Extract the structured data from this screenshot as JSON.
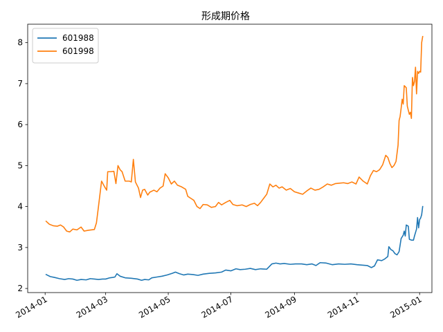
{
  "chart_data": {
    "type": "line",
    "title": "形成期价格",
    "xlabel": "",
    "ylabel": "",
    "xlim": [
      "2013-12-15",
      "2015-01-13"
    ],
    "ylim": [
      1.9,
      8.45
    ],
    "grid": false,
    "legend_position": "top-left",
    "x_ticks": [
      {
        "date": "2014-01-01",
        "label": "2014-01"
      },
      {
        "date": "2014-03-01",
        "label": "2014-03"
      },
      {
        "date": "2014-05-01",
        "label": "2014-05"
      },
      {
        "date": "2014-07-01",
        "label": "2014-07"
      },
      {
        "date": "2014-09-01",
        "label": "2014-09"
      },
      {
        "date": "2014-11-01",
        "label": "2014-11"
      },
      {
        "date": "2015-01-01",
        "label": "2015-01"
      }
    ],
    "y_ticks": [
      {
        "value": 2,
        "label": "2"
      },
      {
        "value": 3,
        "label": "3"
      },
      {
        "value": 4,
        "label": "4"
      },
      {
        "value": 5,
        "label": "5"
      },
      {
        "value": 6,
        "label": "6"
      },
      {
        "value": 7,
        "label": "7"
      },
      {
        "value": 8,
        "label": "8"
      }
    ],
    "series": [
      {
        "name": "601988",
        "color": "#1f77b4",
        "points": [
          [
            "2014-01-02",
            2.34
          ],
          [
            "2014-01-06",
            2.29
          ],
          [
            "2014-01-10",
            2.27
          ],
          [
            "2014-01-15",
            2.24
          ],
          [
            "2014-01-20",
            2.22
          ],
          [
            "2014-01-24",
            2.24
          ],
          [
            "2014-01-28",
            2.23
          ],
          [
            "2014-02-01",
            2.2
          ],
          [
            "2014-02-05",
            2.22
          ],
          [
            "2014-02-10",
            2.21
          ],
          [
            "2014-02-14",
            2.24
          ],
          [
            "2014-02-18",
            2.23
          ],
          [
            "2014-02-22",
            2.22
          ],
          [
            "2014-02-26",
            2.23
          ],
          [
            "2014-03-01",
            2.23
          ],
          [
            "2014-03-05",
            2.26
          ],
          [
            "2014-03-08",
            2.27
          ],
          [
            "2014-03-10",
            2.28
          ],
          [
            "2014-03-12",
            2.36
          ],
          [
            "2014-03-15",
            2.3
          ],
          [
            "2014-03-20",
            2.26
          ],
          [
            "2014-03-26",
            2.25
          ],
          [
            "2014-04-01",
            2.23
          ],
          [
            "2014-04-05",
            2.2
          ],
          [
            "2014-04-08",
            2.22
          ],
          [
            "2014-04-12",
            2.21
          ],
          [
            "2014-04-15",
            2.26
          ],
          [
            "2014-04-20",
            2.28
          ],
          [
            "2014-04-25",
            2.3
          ],
          [
            "2014-04-30",
            2.33
          ],
          [
            "2014-05-05",
            2.37
          ],
          [
            "2014-05-08",
            2.4
          ],
          [
            "2014-05-12",
            2.36
          ],
          [
            "2014-05-16",
            2.33
          ],
          [
            "2014-05-20",
            2.35
          ],
          [
            "2014-05-25",
            2.34
          ],
          [
            "2014-05-30",
            2.32
          ],
          [
            "2014-06-04",
            2.35
          ],
          [
            "2014-06-10",
            2.37
          ],
          [
            "2014-06-16",
            2.38
          ],
          [
            "2014-06-22",
            2.4
          ],
          [
            "2014-06-26",
            2.45
          ],
          [
            "2014-07-01",
            2.43
          ],
          [
            "2014-07-06",
            2.48
          ],
          [
            "2014-07-10",
            2.46
          ],
          [
            "2014-07-15",
            2.47
          ],
          [
            "2014-07-20",
            2.49
          ],
          [
            "2014-07-25",
            2.46
          ],
          [
            "2014-07-30",
            2.48
          ],
          [
            "2014-08-05",
            2.47
          ],
          [
            "2014-08-10",
            2.6
          ],
          [
            "2014-08-14",
            2.62
          ],
          [
            "2014-08-18",
            2.6
          ],
          [
            "2014-08-22",
            2.61
          ],
          [
            "2014-08-28",
            2.59
          ],
          [
            "2014-09-02",
            2.6
          ],
          [
            "2014-09-08",
            2.6
          ],
          [
            "2014-09-13",
            2.58
          ],
          [
            "2014-09-18",
            2.6
          ],
          [
            "2014-09-22",
            2.56
          ],
          [
            "2014-09-26",
            2.63
          ],
          [
            "2014-10-02",
            2.62
          ],
          [
            "2014-10-08",
            2.58
          ],
          [
            "2014-10-14",
            2.6
          ],
          [
            "2014-10-20",
            2.59
          ],
          [
            "2014-10-26",
            2.6
          ],
          [
            "2014-11-01",
            2.58
          ],
          [
            "2014-11-06",
            2.57
          ],
          [
            "2014-11-11",
            2.56
          ],
          [
            "2014-11-15",
            2.51
          ],
          [
            "2014-11-18",
            2.55
          ],
          [
            "2014-11-21",
            2.7
          ],
          [
            "2014-11-25",
            2.68
          ],
          [
            "2014-11-28",
            2.72
          ],
          [
            "2014-12-01",
            2.78
          ],
          [
            "2014-12-02",
            3.02
          ],
          [
            "2014-12-04",
            2.95
          ],
          [
            "2014-12-06",
            2.92
          ],
          [
            "2014-12-08",
            2.85
          ],
          [
            "2014-12-10",
            2.82
          ],
          [
            "2014-12-12",
            2.9
          ],
          [
            "2014-12-14",
            3.22
          ],
          [
            "2014-12-16",
            3.3
          ],
          [
            "2014-12-17",
            3.4
          ],
          [
            "2014-12-18",
            3.28
          ],
          [
            "2014-12-19",
            3.55
          ],
          [
            "2014-12-21",
            3.52
          ],
          [
            "2014-12-22",
            3.2
          ],
          [
            "2014-12-24",
            3.18
          ],
          [
            "2014-12-26",
            3.18
          ],
          [
            "2014-12-27",
            3.28
          ],
          [
            "2014-12-29",
            3.45
          ],
          [
            "2014-12-30",
            3.73
          ],
          [
            "2014-12-31",
            3.48
          ],
          [
            "2015-01-01",
            3.68
          ],
          [
            "2015-01-02",
            3.72
          ],
          [
            "2015-01-03",
            3.8
          ],
          [
            "2015-01-04",
            4.0
          ]
        ]
      },
      {
        "name": "601998",
        "color": "#ff7f0e",
        "points": [
          [
            "2014-01-02",
            3.64
          ],
          [
            "2014-01-05",
            3.57
          ],
          [
            "2014-01-09",
            3.53
          ],
          [
            "2014-01-13",
            3.52
          ],
          [
            "2014-01-16",
            3.55
          ],
          [
            "2014-01-19",
            3.5
          ],
          [
            "2014-01-22",
            3.4
          ],
          [
            "2014-01-25",
            3.38
          ],
          [
            "2014-01-28",
            3.45
          ],
          [
            "2014-02-01",
            3.43
          ],
          [
            "2014-02-05",
            3.5
          ],
          [
            "2014-02-08",
            3.4
          ],
          [
            "2014-02-12",
            3.42
          ],
          [
            "2014-02-18",
            3.44
          ],
          [
            "2014-02-20",
            3.6
          ],
          [
            "2014-02-22",
            4.0
          ],
          [
            "2014-02-25",
            4.62
          ],
          [
            "2014-02-28",
            4.48
          ],
          [
            "2014-03-02",
            4.4
          ],
          [
            "2014-03-03",
            4.85
          ],
          [
            "2014-03-06",
            4.85
          ],
          [
            "2014-03-09",
            4.86
          ],
          [
            "2014-03-11",
            4.56
          ],
          [
            "2014-03-13",
            5.0
          ],
          [
            "2014-03-15",
            4.9
          ],
          [
            "2014-03-17",
            4.85
          ],
          [
            "2014-03-20",
            4.62
          ],
          [
            "2014-03-24",
            4.62
          ],
          [
            "2014-03-26",
            4.6
          ],
          [
            "2014-03-28",
            5.15
          ],
          [
            "2014-03-30",
            4.6
          ],
          [
            "2014-04-02",
            4.45
          ],
          [
            "2014-04-04",
            4.22
          ],
          [
            "2014-04-06",
            4.4
          ],
          [
            "2014-04-08",
            4.42
          ],
          [
            "2014-04-11",
            4.28
          ],
          [
            "2014-04-13",
            4.35
          ],
          [
            "2014-04-17",
            4.4
          ],
          [
            "2014-04-20",
            4.36
          ],
          [
            "2014-04-23",
            4.45
          ],
          [
            "2014-04-26",
            4.5
          ],
          [
            "2014-04-28",
            4.8
          ],
          [
            "2014-05-01",
            4.7
          ],
          [
            "2014-05-04",
            4.55
          ],
          [
            "2014-05-07",
            4.62
          ],
          [
            "2014-05-10",
            4.52
          ],
          [
            "2014-05-14",
            4.48
          ],
          [
            "2014-05-18",
            4.42
          ],
          [
            "2014-05-20",
            4.25
          ],
          [
            "2014-05-23",
            4.2
          ],
          [
            "2014-05-26",
            4.15
          ],
          [
            "2014-05-29",
            4.0
          ],
          [
            "2014-06-01",
            3.95
          ],
          [
            "2014-06-04",
            4.05
          ],
          [
            "2014-06-08",
            4.04
          ],
          [
            "2014-06-12",
            3.98
          ],
          [
            "2014-06-16",
            4.0
          ],
          [
            "2014-06-19",
            4.1
          ],
          [
            "2014-06-22",
            4.04
          ],
          [
            "2014-06-26",
            4.1
          ],
          [
            "2014-06-30",
            4.15
          ],
          [
            "2014-07-03",
            4.05
          ],
          [
            "2014-07-07",
            4.02
          ],
          [
            "2014-07-12",
            4.04
          ],
          [
            "2014-07-16",
            4.0
          ],
          [
            "2014-07-20",
            4.05
          ],
          [
            "2014-07-24",
            4.08
          ],
          [
            "2014-07-27",
            4.02
          ],
          [
            "2014-07-30",
            4.1
          ],
          [
            "2014-08-02",
            4.2
          ],
          [
            "2014-08-05",
            4.3
          ],
          [
            "2014-08-08",
            4.55
          ],
          [
            "2014-08-11",
            4.48
          ],
          [
            "2014-08-14",
            4.52
          ],
          [
            "2014-08-17",
            4.45
          ],
          [
            "2014-08-20",
            4.48
          ],
          [
            "2014-08-24",
            4.4
          ],
          [
            "2014-08-28",
            4.44
          ],
          [
            "2014-09-01",
            4.36
          ],
          [
            "2014-09-05",
            4.33
          ],
          [
            "2014-09-09",
            4.3
          ],
          [
            "2014-09-13",
            4.38
          ],
          [
            "2014-09-17",
            4.45
          ],
          [
            "2014-09-21",
            4.4
          ],
          [
            "2014-09-25",
            4.42
          ],
          [
            "2014-09-29",
            4.48
          ],
          [
            "2014-10-03",
            4.55
          ],
          [
            "2014-10-07",
            4.52
          ],
          [
            "2014-10-11",
            4.56
          ],
          [
            "2014-10-15",
            4.57
          ],
          [
            "2014-10-19",
            4.58
          ],
          [
            "2014-10-23",
            4.56
          ],
          [
            "2014-10-27",
            4.6
          ],
          [
            "2014-10-31",
            4.55
          ],
          [
            "2014-11-03",
            4.72
          ],
          [
            "2014-11-07",
            4.62
          ],
          [
            "2014-11-11",
            4.55
          ],
          [
            "2014-11-14",
            4.75
          ],
          [
            "2014-11-17",
            4.88
          ],
          [
            "2014-11-20",
            4.85
          ],
          [
            "2014-11-23",
            4.9
          ],
          [
            "2014-11-26",
            5.02
          ],
          [
            "2014-11-29",
            5.25
          ],
          [
            "2014-12-01",
            5.2
          ],
          [
            "2014-12-03",
            5.05
          ],
          [
            "2014-12-05",
            4.95
          ],
          [
            "2014-12-07",
            5.0
          ],
          [
            "2014-12-09",
            5.1
          ],
          [
            "2014-12-10",
            5.3
          ],
          [
            "2014-12-11",
            5.5
          ],
          [
            "2014-12-12",
            6.1
          ],
          [
            "2014-12-13",
            6.2
          ],
          [
            "2014-12-14",
            6.4
          ],
          [
            "2014-12-15",
            6.62
          ],
          [
            "2014-12-16",
            6.5
          ],
          [
            "2014-12-17",
            6.95
          ],
          [
            "2014-12-19",
            6.9
          ],
          [
            "2014-12-20",
            6.45
          ],
          [
            "2014-12-21",
            6.35
          ],
          [
            "2014-12-22",
            6.25
          ],
          [
            "2014-12-23",
            6.3
          ],
          [
            "2014-12-24",
            6.15
          ],
          [
            "2014-12-25",
            7.15
          ],
          [
            "2014-12-26",
            6.95
          ],
          [
            "2014-12-27",
            7.05
          ],
          [
            "2014-12-28",
            7.4
          ],
          [
            "2014-12-29",
            6.75
          ],
          [
            "2014-12-30",
            7.3
          ],
          [
            "2014-12-31",
            7.25
          ],
          [
            "2015-01-01",
            7.3
          ],
          [
            "2015-01-02",
            7.28
          ],
          [
            "2015-01-03",
            8.0
          ],
          [
            "2015-01-04",
            8.15
          ]
        ]
      }
    ]
  }
}
